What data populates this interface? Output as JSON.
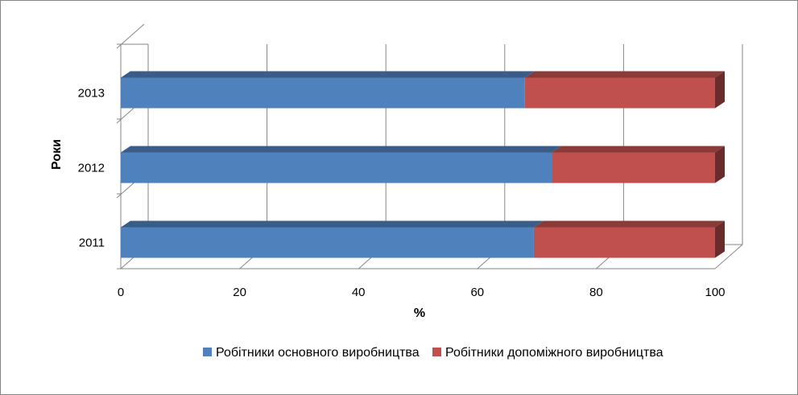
{
  "chart_data": {
    "type": "bar",
    "orientation": "horizontal",
    "stacked": true,
    "three_d": true,
    "categories": [
      "2011",
      "2012",
      "2013"
    ],
    "series": [
      {
        "name": "Робітники основного виробництва",
        "color": "#4F81BD",
        "values": [
          69.5,
          72.5,
          68
        ]
      },
      {
        "name": "Робітники допоміжного виробництва",
        "color": "#C0504D",
        "values": [
          31.5,
          28.5,
          33
        ]
      }
    ],
    "xlabel": "%",
    "ylabel": "Роки",
    "xlim": [
      0,
      100
    ],
    "xticks": [
      "0",
      "20",
      "40",
      "60",
      "80",
      "100"
    ],
    "grid": true,
    "legend_position": "bottom"
  }
}
